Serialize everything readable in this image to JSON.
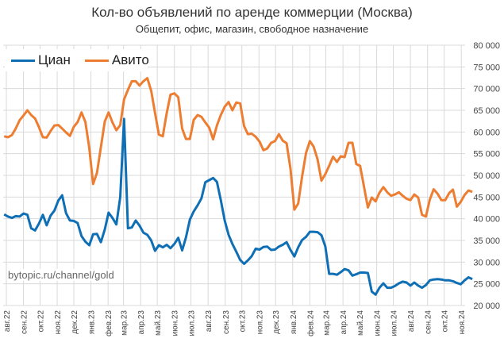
{
  "chart_data": {
    "type": "line",
    "title": "Кол-во объявлений по аренде коммерции (Москва)",
    "subtitle": "Общепит, офис, магазин, свободное назначение",
    "watermark": "bytopic.ru/channel/gold",
    "ylim": [
      20000,
      80000
    ],
    "yticks": [
      20000,
      25000,
      30000,
      35000,
      40000,
      45000,
      50000,
      55000,
      60000,
      65000,
      70000,
      75000,
      80000
    ],
    "ytick_labels": [
      "20 000",
      "25 000",
      "30 000",
      "35 000",
      "40 000",
      "45 000",
      "50 000",
      "55 000",
      "60 000",
      "65 000",
      "70 000",
      "75 000",
      "80 000"
    ],
    "xtick_labels": [
      "авг.22",
      "сен.22",
      "окт.22",
      "ноя.22",
      "дек.22",
      "янв.23",
      "фев.23",
      "мар.23",
      "апр.23",
      "май.23",
      "июн.23",
      "июл.23",
      "авг.23",
      "сен.23",
      "окт.23",
      "ноя.23",
      "дек.23",
      "янв.24",
      "фев.24",
      "мар.24",
      "апр.24",
      "май.24",
      "июн.24",
      "июл.24",
      "авг.24",
      "сен.24",
      "окт.24",
      "ноя.24"
    ],
    "xticks": [
      "2022-08-01",
      "2022-09-01",
      "2022-10-01",
      "2022-11-01",
      "2022-12-01",
      "2023-01-01",
      "2023-02-01",
      "2023-03-01",
      "2023-04-01",
      "2023-05-01",
      "2023-06-01",
      "2023-07-01",
      "2023-08-01",
      "2023-09-01",
      "2023-10-01",
      "2023-11-01",
      "2023-12-01",
      "2024-01-01",
      "2024-02-01",
      "2024-03-01",
      "2024-04-01",
      "2024-05-01",
      "2024-06-01",
      "2024-07-01",
      "2024-08-01",
      "2024-09-01",
      "2024-10-01",
      "2024-11-01"
    ],
    "grid": true,
    "legend_position": "top-left",
    "y_axis_side": "right",
    "x": [
      "2022-07-28",
      "2022-08-04",
      "2022-08-11",
      "2022-08-18",
      "2022-08-25",
      "2022-09-01",
      "2022-09-08",
      "2022-09-15",
      "2022-09-22",
      "2022-09-29",
      "2022-10-06",
      "2022-10-13",
      "2022-10-20",
      "2022-10-27",
      "2022-11-03",
      "2022-11-10",
      "2022-11-17",
      "2022-11-24",
      "2022-12-01",
      "2022-12-08",
      "2022-12-15",
      "2022-12-22",
      "2022-12-29",
      "2023-01-05",
      "2023-01-12",
      "2023-01-19",
      "2023-01-26",
      "2023-02-02",
      "2023-02-09",
      "2023-02-16",
      "2023-02-23",
      "2023-03-02",
      "2023-03-09",
      "2023-03-16",
      "2023-03-23",
      "2023-03-30",
      "2023-04-06",
      "2023-04-13",
      "2023-04-20",
      "2023-04-27",
      "2023-05-04",
      "2023-05-11",
      "2023-05-18",
      "2023-05-25",
      "2023-06-01",
      "2023-06-08",
      "2023-06-15",
      "2023-06-22",
      "2023-06-29",
      "2023-07-06",
      "2023-07-13",
      "2023-07-20",
      "2023-07-27",
      "2023-08-03",
      "2023-08-10",
      "2023-08-17",
      "2023-08-24",
      "2023-08-31",
      "2023-09-07",
      "2023-09-14",
      "2023-09-21",
      "2023-09-28",
      "2023-10-05",
      "2023-10-12",
      "2023-10-19",
      "2023-10-26",
      "2023-11-02",
      "2023-11-09",
      "2023-11-16",
      "2023-11-23",
      "2023-11-30",
      "2023-12-07",
      "2023-12-14",
      "2023-12-21",
      "2023-12-28",
      "2024-01-04",
      "2024-01-11",
      "2024-01-18",
      "2024-01-25",
      "2024-02-01",
      "2024-02-08",
      "2024-02-15",
      "2024-02-22",
      "2024-02-29",
      "2024-03-07",
      "2024-03-14",
      "2024-03-21",
      "2024-03-28",
      "2024-04-04",
      "2024-04-11",
      "2024-04-18",
      "2024-04-25",
      "2024-05-02",
      "2024-05-09",
      "2024-05-16",
      "2024-05-23",
      "2024-05-30",
      "2024-06-06",
      "2024-06-13",
      "2024-06-20",
      "2024-06-27",
      "2024-07-04",
      "2024-07-11",
      "2024-07-18",
      "2024-07-25",
      "2024-08-01",
      "2024-08-08",
      "2024-08-15",
      "2024-08-22",
      "2024-08-29",
      "2024-09-05",
      "2024-09-12",
      "2024-09-19",
      "2024-09-26",
      "2024-10-03",
      "2024-10-10",
      "2024-10-17",
      "2024-10-24",
      "2024-10-31",
      "2024-11-07",
      "2024-11-14",
      "2024-11-21"
    ],
    "series": [
      {
        "name": "Циан",
        "color": "#0F6FB5",
        "values": [
          41000,
          40500,
          40200,
          40600,
          40500,
          41200,
          40900,
          37800,
          37300,
          38900,
          40900,
          38500,
          40700,
          41900,
          44200,
          45400,
          41300,
          39600,
          39500,
          39000,
          36000,
          34700,
          33900,
          36400,
          36500,
          34600,
          37500,
          41400,
          40200,
          38700,
          45000,
          63000,
          37800,
          38000,
          39600,
          38400,
          36800,
          36300,
          35000,
          32600,
          33900,
          33400,
          34000,
          33200,
          34200,
          35600,
          32700,
          35700,
          39800,
          41700,
          43100,
          44700,
          48400,
          48900,
          49400,
          48500,
          44300,
          39600,
          36300,
          34200,
          32400,
          30500,
          29600,
          30400,
          31400,
          33100,
          32900,
          33500,
          33600,
          32800,
          32900,
          33600,
          34000,
          34600,
          32800,
          31300,
          33400,
          35100,
          35800,
          37000,
          37000,
          36900,
          36200,
          33600,
          27300,
          27300,
          27100,
          27700,
          28400,
          28100,
          26900,
          27200,
          27600,
          27600,
          27500,
          23200,
          22500,
          24100,
          25100,
          24100,
          24100,
          24500,
          25100,
          25500,
          25300,
          24600,
          25300,
          24600,
          24100,
          24700,
          25800,
          26000,
          26100,
          26000,
          25800,
          25800,
          25600,
          25200,
          24900,
          25800,
          26500,
          26100
        ]
      },
      {
        "name": "Авито",
        "color": "#ED7D31",
        "values": [
          59000,
          58800,
          59300,
          60800,
          62700,
          63800,
          65000,
          63900,
          63100,
          61100,
          58800,
          58700,
          60200,
          61500,
          61600,
          60800,
          59900,
          59100,
          61200,
          62300,
          64500,
          62300,
          56300,
          48000,
          50600,
          56500,
          62400,
          64500,
          62200,
          60400,
          61600,
          67500,
          69700,
          71700,
          71700,
          70700,
          71700,
          72400,
          69500,
          64400,
          59400,
          59000,
          64300,
          68600,
          68900,
          68000,
          60800,
          58400,
          58400,
          62800,
          63900,
          63500,
          62200,
          61000,
          58300,
          61500,
          63900,
          65800,
          66900,
          65000,
          66800,
          66600,
          61400,
          59500,
          59600,
          58900,
          57800,
          55800,
          56200,
          57500,
          57900,
          59500,
          58000,
          57400,
          51500,
          42100,
          43500,
          49700,
          55100,
          57900,
          56600,
          53700,
          48800,
          50300,
          52200,
          54300,
          53100,
          54400,
          54200,
          57500,
          57500,
          52600,
          52200,
          47400,
          42600,
          44900,
          44000,
          46000,
          47300,
          46100,
          45300,
          45600,
          46100,
          45300,
          44600,
          44300,
          45600,
          44900,
          40900,
          40500,
          44400,
          46800,
          45800,
          44300,
          44300,
          45900,
          46700,
          42800,
          43900,
          45500,
          46500,
          46200
        ]
      }
    ]
  }
}
